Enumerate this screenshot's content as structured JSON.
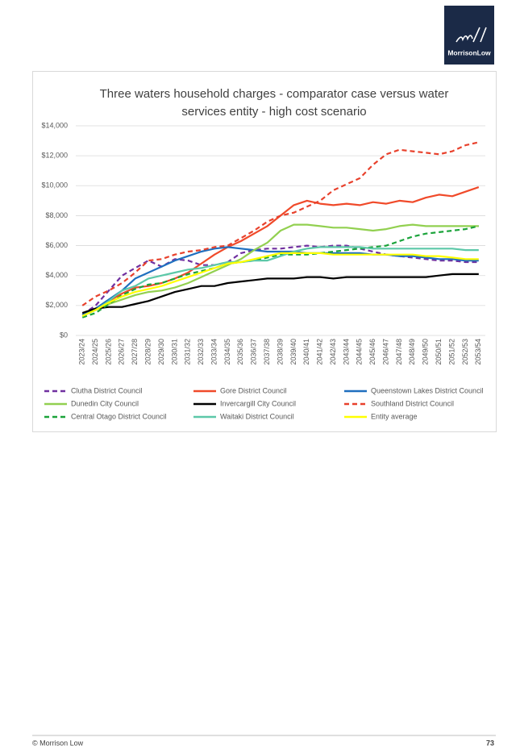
{
  "header": {
    "logo_text": "MorrisonLow"
  },
  "chart_data": {
    "type": "line",
    "title": "Three waters household charges - comparator case versus water services entity - high cost scenario",
    "categories": [
      "2023/24",
      "2024/25",
      "2025/26",
      "2026/27",
      "2027/28",
      "2028/29",
      "2029/30",
      "2030/31",
      "2031/32",
      "2032/33",
      "2033/34",
      "2034/35",
      "2035/36",
      "2036/37",
      "2037/38",
      "2038/39",
      "2039/40",
      "2040/41",
      "2041/42",
      "2042/43",
      "2043/44",
      "2044/45",
      "2045/46",
      "2046/47",
      "2047/48",
      "2048/49",
      "2049/50",
      "2050/51",
      "2051/52",
      "2052/53",
      "2053/54"
    ],
    "ylim": [
      0,
      14000
    ],
    "yticks": [
      {
        "value": 0,
        "label": "$0"
      },
      {
        "value": 2000,
        "label": "$2,000"
      },
      {
        "value": 4000,
        "label": "$4,000"
      },
      {
        "value": 6000,
        "label": "$6,000"
      },
      {
        "value": 8000,
        "label": "$8,000"
      },
      {
        "value": 10000,
        "label": "$10,000"
      },
      {
        "value": 12000,
        "label": "$12,000"
      },
      {
        "value": 14000,
        "label": "$14,000"
      }
    ],
    "grid": true,
    "legend": "bottom",
    "series": [
      {
        "name": "Clutha District Council",
        "color": "#7030a0",
        "style": "dashed",
        "values": [
          1400,
          2000,
          3000,
          4000,
          4500,
          5000,
          4600,
          5100,
          5000,
          4700,
          4700,
          4900,
          5500,
          5700,
          5800,
          5800,
          5900,
          6000,
          5900,
          6000,
          6000,
          5800,
          5600,
          5400,
          5300,
          5200,
          5100,
          5000,
          5000,
          4900,
          4900
        ]
      },
      {
        "name": "Gore District Council",
        "color": "#f04a2a",
        "style": "solid",
        "values": [
          1400,
          1800,
          2300,
          2800,
          3200,
          3300,
          3500,
          3800,
          4200,
          4800,
          5400,
          5900,
          6300,
          6800,
          7300,
          8000,
          8700,
          9000,
          8800,
          8700,
          8800,
          8700,
          8900,
          8800,
          9000,
          8900,
          9200,
          9400,
          9300,
          9600,
          9900
        ]
      },
      {
        "name": "Queenstown Lakes District Council",
        "color": "#1f6fbf",
        "style": "solid",
        "values": [
          1400,
          1800,
          2400,
          3000,
          3800,
          4200,
          4600,
          5000,
          5300,
          5600,
          5800,
          5900,
          5800,
          5700,
          5600,
          5600,
          5600,
          5500,
          5500,
          5500,
          5500,
          5500,
          5400,
          5400,
          5300,
          5300,
          5200,
          5100,
          5100,
          5000,
          5000
        ]
      },
      {
        "name": "Dunedin City Council",
        "color": "#92d050",
        "style": "solid",
        "values": [
          1300,
          1700,
          2100,
          2400,
          2700,
          2900,
          3000,
          3200,
          3500,
          3900,
          4300,
          4700,
          5100,
          5700,
          6200,
          7000,
          7400,
          7400,
          7300,
          7200,
          7200,
          7100,
          7000,
          7100,
          7300,
          7400,
          7300,
          7300,
          7300,
          7300,
          7300
        ]
      },
      {
        "name": "Invercargill City Council",
        "color": "#000000",
        "style": "solid",
        "values": [
          1500,
          1800,
          1900,
          1900,
          2100,
          2300,
          2600,
          2900,
          3100,
          3300,
          3300,
          3500,
          3600,
          3700,
          3800,
          3800,
          3800,
          3900,
          3900,
          3800,
          3900,
          3900,
          3900,
          3900,
          3900,
          3900,
          3900,
          4000,
          4100,
          4100,
          4100
        ]
      },
      {
        "name": "Southland District Council",
        "color": "#e8412c",
        "style": "dashed",
        "values": [
          2000,
          2600,
          3000,
          3500,
          4200,
          5000,
          5100,
          5400,
          5600,
          5700,
          5900,
          6000,
          6500,
          7000,
          7600,
          8000,
          8200,
          8600,
          9000,
          9700,
          10100,
          10500,
          11400,
          12100,
          12400,
          12300,
          12200,
          12100,
          12300,
          12700,
          12900
        ]
      },
      {
        "name": "Central Otago District Council",
        "color": "#1aa33a",
        "style": "dashed",
        "values": [
          1200,
          1500,
          2100,
          2700,
          3100,
          3400,
          3500,
          3800,
          4100,
          4300,
          4500,
          4800,
          4900,
          5000,
          5200,
          5400,
          5400,
          5400,
          5500,
          5600,
          5700,
          5800,
          5900,
          6000,
          6300,
          6600,
          6800,
          6900,
          7000,
          7100,
          7300
        ]
      },
      {
        "name": "Waitaki District Council",
        "color": "#5cc8a8",
        "style": "solid",
        "values": [
          1300,
          1700,
          2300,
          3000,
          3300,
          3800,
          4000,
          4200,
          4400,
          4500,
          4700,
          4900,
          4900,
          5000,
          5000,
          5300,
          5600,
          5800,
          5900,
          5900,
          5900,
          5900,
          5800,
          5800,
          5800,
          5800,
          5800,
          5800,
          5800,
          5700,
          5700
        ]
      },
      {
        "name": "Entity average",
        "color": "#ffff00",
        "style": "solid",
        "values": [
          1300,
          1700,
          2200,
          2600,
          2900,
          3100,
          3300,
          3600,
          3900,
          4200,
          4500,
          4800,
          4900,
          5100,
          5300,
          5500,
          5500,
          5500,
          5500,
          5400,
          5400,
          5400,
          5400,
          5400,
          5400,
          5400,
          5300,
          5300,
          5200,
          5100,
          5100
        ]
      }
    ]
  },
  "footer": {
    "copyright": "© Morrison Low",
    "page_number": "73"
  }
}
